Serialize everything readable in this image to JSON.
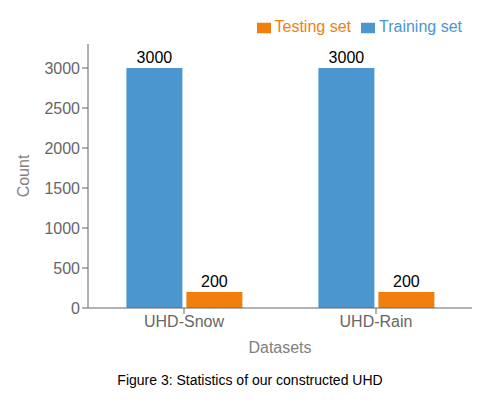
{
  "chart_data": {
    "type": "bar",
    "categories": [
      "UHD-Snow",
      "UHD-Rain"
    ],
    "series": [
      {
        "name": "Training set",
        "color": "#4c96d0",
        "values": [
          3000,
          3000
        ]
      },
      {
        "name": "Testing set",
        "color": "#f07f0e",
        "values": [
          200,
          200
        ]
      }
    ],
    "xlabel": "Datasets",
    "ylabel": "Count",
    "ylim": [
      0,
      3300
    ],
    "yticks": [
      0,
      500,
      1000,
      1500,
      2000,
      2500,
      3000
    ],
    "data_labels": true,
    "legend": "upper right",
    "grid": false,
    "annotations": [
      "Figure 3: Statistics of our constructed UHD"
    ]
  }
}
